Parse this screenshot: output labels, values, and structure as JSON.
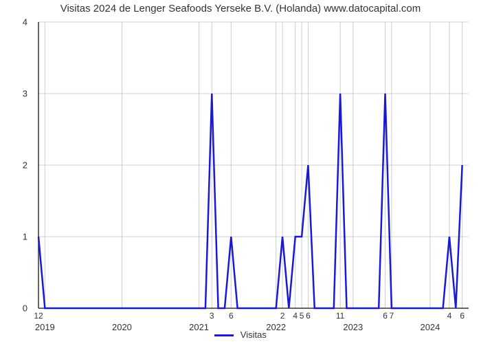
{
  "chart": {
    "type": "line",
    "title": "Visitas 2024 de Lenger Seafoods Yerseke B.V. (Holanda) www.datocapital.com",
    "title_fontsize": 15,
    "title_color": "#333333",
    "background_color": "#ffffff",
    "line_color": "#1818d6",
    "line_width": 2.5,
    "grid_color": "#cccccc",
    "grid_width": 1,
    "axis_color": "#333333",
    "axis_width": 1.5,
    "ylim": [
      0,
      4
    ],
    "yticks": [
      0,
      1,
      2,
      3,
      4
    ],
    "xlim_months": [
      0,
      66
    ],
    "year_labels": [
      "2019",
      "2020",
      "2021",
      "2022",
      "2023",
      "2024"
    ],
    "year_month_positions": [
      0,
      12,
      24,
      36,
      48,
      60
    ],
    "minor_tick_labels": [
      {
        "m": -1,
        "label": "12"
      },
      {
        "m": 26,
        "label": "3"
      },
      {
        "m": 29,
        "label": "6"
      },
      {
        "m": 37,
        "label": "2"
      },
      {
        "m": 39,
        "label": "4"
      },
      {
        "m": 40,
        "label": "5"
      },
      {
        "m": 41,
        "label": "6"
      },
      {
        "m": 46,
        "label": "11"
      },
      {
        "m": 53,
        "label": "6"
      },
      {
        "m": 54,
        "label": "7"
      },
      {
        "m": 63,
        "label": "4"
      },
      {
        "m": 65,
        "label": "6"
      }
    ],
    "vgrid_months": [
      -1,
      0,
      12,
      24,
      26,
      29,
      36,
      37,
      39,
      40,
      41,
      46,
      48,
      53,
      54,
      60,
      63,
      65
    ],
    "data": [
      {
        "m": -1,
        "v": 1
      },
      {
        "m": 0,
        "v": 0
      },
      {
        "m": 25,
        "v": 0
      },
      {
        "m": 26,
        "v": 3
      },
      {
        "m": 27,
        "v": 0
      },
      {
        "m": 28,
        "v": 0
      },
      {
        "m": 29,
        "v": 1
      },
      {
        "m": 30,
        "v": 0
      },
      {
        "m": 36,
        "v": 0
      },
      {
        "m": 37,
        "v": 1
      },
      {
        "m": 38,
        "v": 0
      },
      {
        "m": 39,
        "v": 1
      },
      {
        "m": 40,
        "v": 1
      },
      {
        "m": 41,
        "v": 2
      },
      {
        "m": 42,
        "v": 0
      },
      {
        "m": 45,
        "v": 0
      },
      {
        "m": 46,
        "v": 3
      },
      {
        "m": 47,
        "v": 0
      },
      {
        "m": 52,
        "v": 0
      },
      {
        "m": 53,
        "v": 3
      },
      {
        "m": 54,
        "v": 0
      },
      {
        "m": 55,
        "v": 0
      },
      {
        "m": 62,
        "v": 0
      },
      {
        "m": 63,
        "v": 1
      },
      {
        "m": 64,
        "v": 0
      },
      {
        "m": 65,
        "v": 2
      }
    ],
    "legend_label": "Visitas",
    "tick_fontsize": 13
  }
}
